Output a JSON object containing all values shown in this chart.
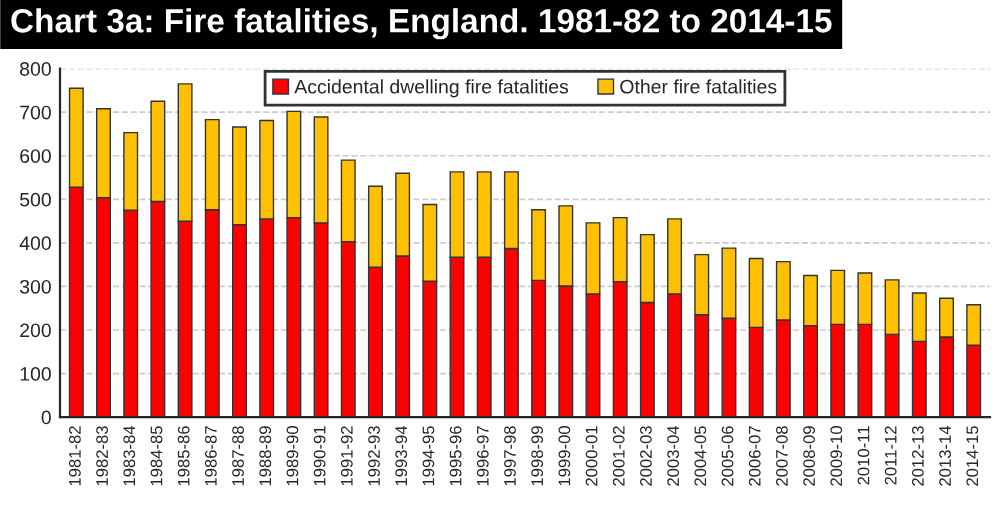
{
  "chart_data": {
    "type": "bar",
    "title": "Chart 3a: Fire fatalities, England. 1981-82 to 2014-15",
    "stacked": true,
    "categories": [
      "1981-82",
      "1982-83",
      "1983-84",
      "1984-85",
      "1985-86",
      "1986-87",
      "1987-88",
      "1988-89",
      "1989-90",
      "1990-91",
      "1991-92",
      "1992-93",
      "1993-94",
      "1994-95",
      "1995-96",
      "1996-97",
      "1997-98",
      "1998-99",
      "1999-00",
      "2000-01",
      "2001-02",
      "2002-03",
      "2003-04",
      "2004-05",
      "2005-06",
      "2006-07",
      "2007-08",
      "2008-09",
      "2009-10",
      "2010-11",
      "2011-12",
      "2012-13",
      "2013-14",
      "2014-15"
    ],
    "series": [
      {
        "name": "Accidental dwelling fire fatalities",
        "color": "#ff0000",
        "values": [
          528,
          504,
          475,
          495,
          450,
          476,
          442,
          455,
          458,
          446,
          403,
          344,
          370,
          312,
          367,
          367,
          387,
          314,
          301,
          283,
          311,
          263,
          283,
          235,
          227,
          206,
          223,
          210,
          213,
          213,
          190,
          174,
          184,
          165
        ]
      },
      {
        "name": "Other fire fatalities",
        "color": "#ffc000",
        "values": [
          227,
          204,
          178,
          230,
          315,
          207,
          224,
          226,
          244,
          243,
          187,
          186,
          190,
          176,
          196,
          196,
          176,
          162,
          184,
          163,
          147,
          156,
          172,
          138,
          161,
          158,
          134,
          115,
          124,
          118,
          125,
          111,
          89,
          93
        ]
      }
    ],
    "ylim": [
      0,
      800
    ],
    "yticks": [
      0,
      100,
      200,
      300,
      400,
      500,
      600,
      700,
      800
    ],
    "grid": "y",
    "legend": "top"
  }
}
